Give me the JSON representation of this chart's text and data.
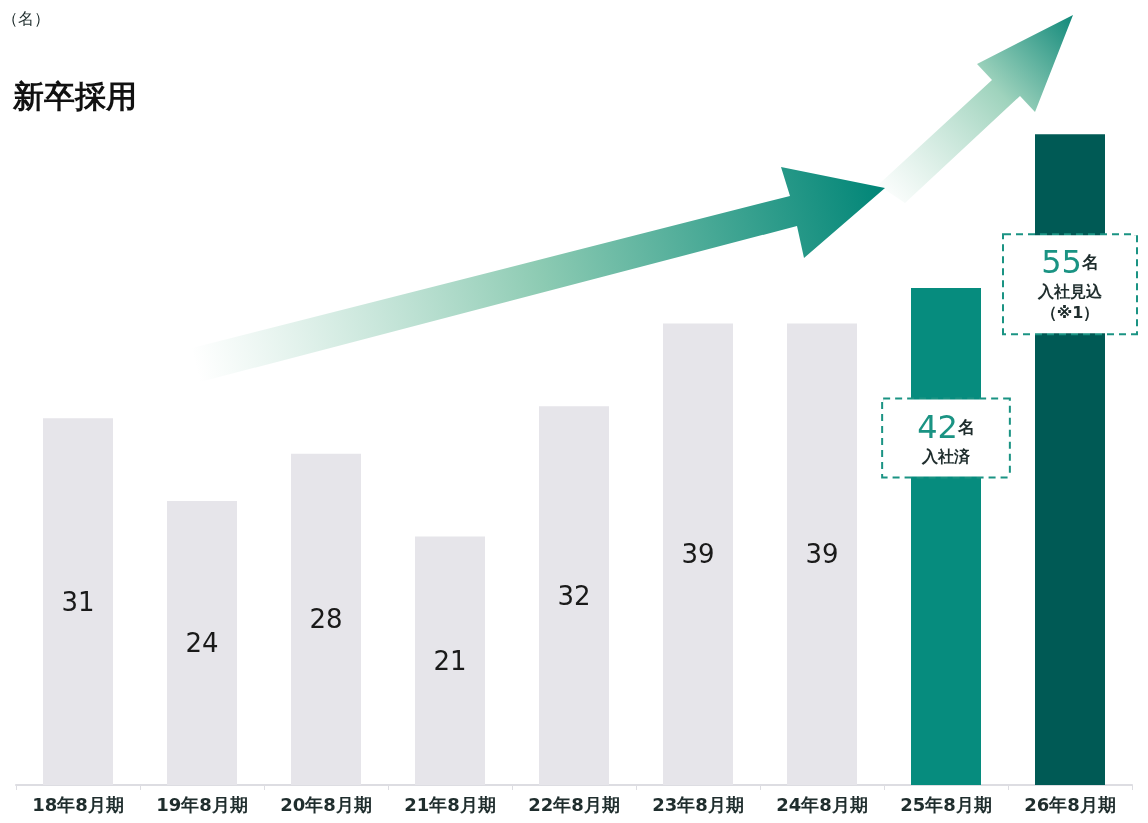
{
  "chart_data": {
    "type": "bar",
    "title": "新卒採用",
    "categories": [
      "18年8月期",
      "19年8月期",
      "20年8月期",
      "21年8月期",
      "22年8月期",
      "23年8月期",
      "24年8月期",
      "25年8月期",
      "26年8月期"
    ],
    "values": [
      31,
      24,
      28,
      21,
      32,
      39,
      39,
      42,
      55
    ],
    "colors": [
      "#e6e5ea",
      "#e6e5ea",
      "#e6e5ea",
      "#e6e5ea",
      "#e6e5ea",
      "#e6e5ea",
      "#e6e5ea",
      "#068c7e",
      "#005a55"
    ],
    "value_labels": [
      "31",
      "24",
      "28",
      "21",
      "32",
      "39",
      "39",
      "42名",
      "55名"
    ],
    "annotations": [
      "（名）",
      "入社済",
      "入社見込（※1）"
    ]
  }
}
